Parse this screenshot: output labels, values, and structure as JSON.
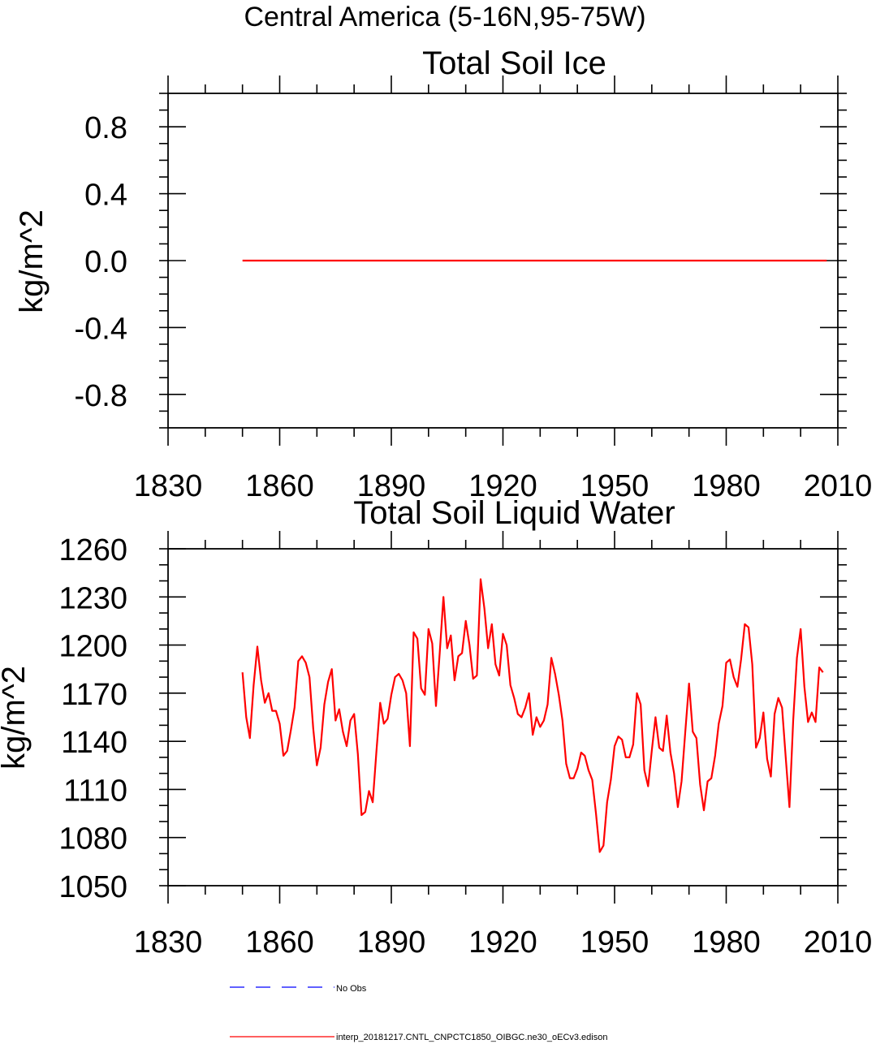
{
  "figure": {
    "main_title": "Central America (5-16N,95-75W)"
  },
  "chart_data": [
    {
      "type": "line",
      "title": "Total Soil Ice",
      "xlabel": "",
      "ylabel": "kg/m^2",
      "xlim": [
        1830,
        2010
      ],
      "ylim": [
        -1.0,
        1.0
      ],
      "xticks": [
        1830,
        1860,
        1890,
        1920,
        1950,
        1980,
        2010
      ],
      "xtick_labels": [
        "1830",
        "1860",
        "1890",
        "1920",
        "1950",
        "1980",
        "2010"
      ],
      "yticks": [
        -0.8,
        -0.4,
        0.0,
        0.4,
        0.8
      ],
      "ytick_labels": [
        "-0.8",
        "-0.4",
        "0.0",
        "0.4",
        "0.8"
      ],
      "series": [
        {
          "name": "interp_20181217.CNTL_CNPCTC1850_OIBGC.ne30_oECv3.edison",
          "color": "#ff0000",
          "x": [
            1850,
            2007
          ],
          "values": [
            0.0,
            0.0
          ]
        }
      ]
    },
    {
      "type": "line",
      "title": "Total Soil Liquid Water",
      "xlabel": "",
      "ylabel": "kg/m^2",
      "xlim": [
        1830,
        2010
      ],
      "ylim": [
        1050,
        1260
      ],
      "xticks": [
        1830,
        1860,
        1890,
        1920,
        1950,
        1980,
        2010
      ],
      "xtick_labels": [
        "1830",
        "1860",
        "1890",
        "1920",
        "1950",
        "1980",
        "2010"
      ],
      "yticks": [
        1050,
        1080,
        1110,
        1140,
        1170,
        1200,
        1230,
        1260
      ],
      "ytick_labels": [
        "1050",
        "1080",
        "1110",
        "1140",
        "1170",
        "1200",
        "1230",
        "1260"
      ],
      "series": [
        {
          "name": "interp_20181217.CNTL_CNPCTC1850_OIBGC.ne30_oECv3.edison",
          "color": "#ff0000",
          "x_start": 1850,
          "x_step": 1,
          "values": [
            1183,
            1155,
            1142,
            1175,
            1199,
            1178,
            1164,
            1170,
            1159,
            1159,
            1151,
            1131,
            1134,
            1147,
            1161,
            1190,
            1193,
            1189,
            1180,
            1148,
            1125,
            1136,
            1163,
            1177,
            1185,
            1153,
            1160,
            1146,
            1137,
            1153,
            1157,
            1132,
            1094,
            1096,
            1109,
            1102,
            1134,
            1164,
            1151,
            1154,
            1169,
            1180,
            1182,
            1178,
            1170,
            1137,
            1208,
            1204,
            1173,
            1169,
            1210,
            1201,
            1162,
            1195,
            1230,
            1198,
            1206,
            1178,
            1193,
            1195,
            1215,
            1200,
            1179,
            1181,
            1241,
            1223,
            1198,
            1213,
            1188,
            1181,
            1207,
            1200,
            1175,
            1167,
            1157,
            1155,
            1161,
            1170,
            1144,
            1155,
            1149,
            1153,
            1163,
            1192,
            1182,
            1169,
            1153,
            1126,
            1117,
            1117,
            1123,
            1133,
            1131,
            1122,
            1116,
            1095,
            1071,
            1075,
            1102,
            1116,
            1137,
            1143,
            1141,
            1130,
            1130,
            1138,
            1170,
            1163,
            1122,
            1112,
            1134,
            1155,
            1136,
            1134,
            1156,
            1133,
            1120,
            1099,
            1115,
            1146,
            1176,
            1146,
            1142,
            1113,
            1097,
            1115,
            1117,
            1131,
            1151,
            1162,
            1189,
            1191,
            1180,
            1174,
            1191,
            1213,
            1211,
            1188,
            1136,
            1142,
            1158,
            1129,
            1118,
            1157,
            1167,
            1161,
            1130,
            1099,
            1153,
            1192,
            1210,
            1174,
            1152,
            1158,
            1152,
            1186,
            1183
          ]
        }
      ]
    }
  ],
  "legend": {
    "items": [
      {
        "label": "No Obs",
        "color": "#0000ff",
        "style": "dashed"
      },
      {
        "label": "interp_20181217.CNTL_CNPCTC1850_OIBGC.ne30_oECv3.edison",
        "color": "#ff0000",
        "style": "solid"
      }
    ]
  }
}
